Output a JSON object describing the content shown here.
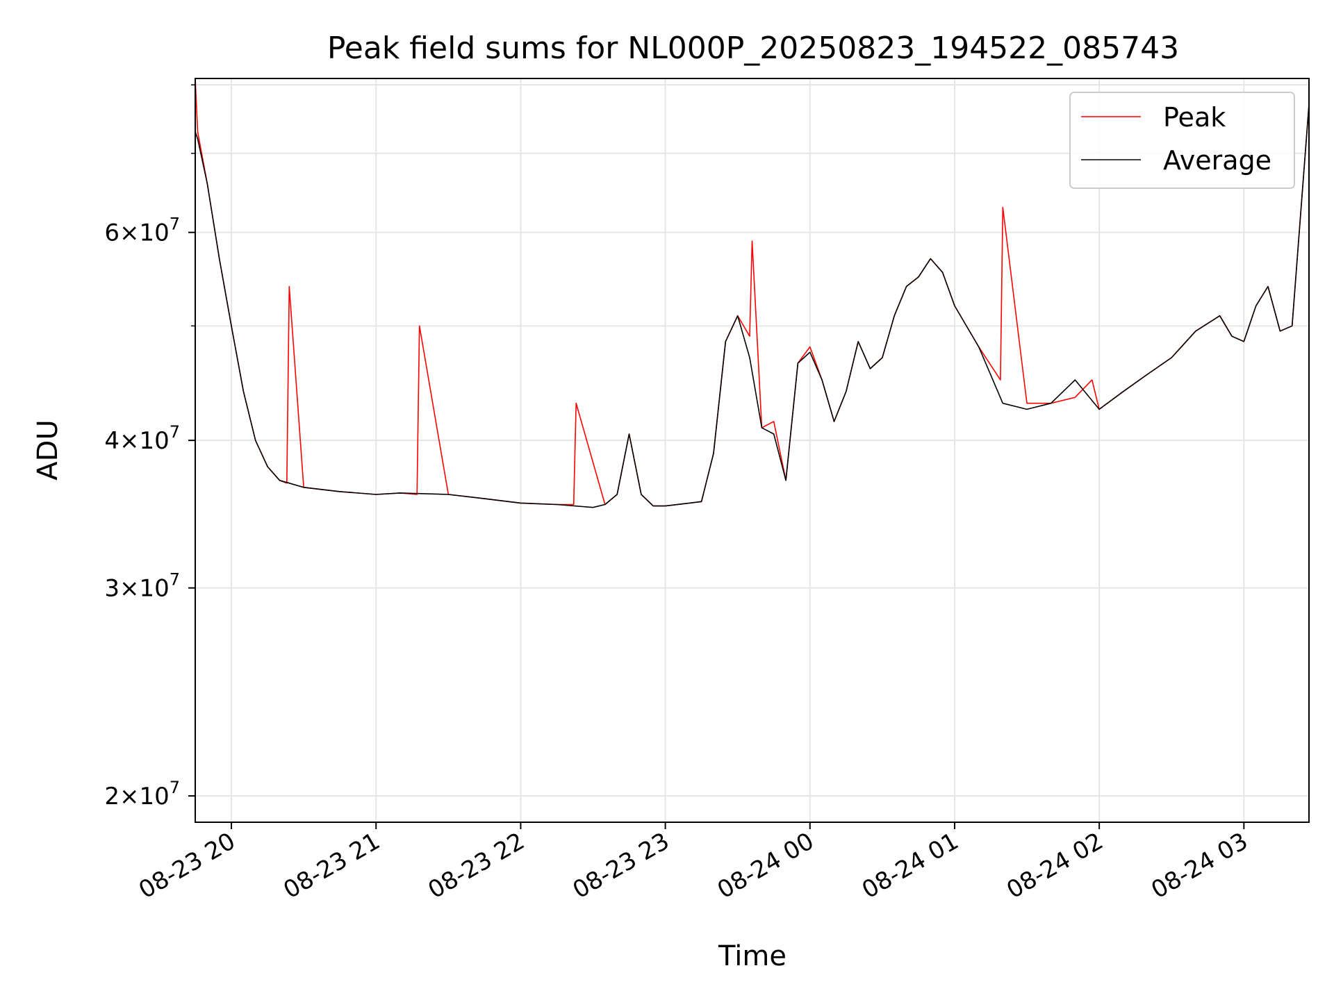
{
  "chart_data": {
    "type": "line",
    "title": "Peak field sums for NL000P_20250823_194522_085743",
    "xlabel": "Time",
    "ylabel": "ADU",
    "x_scale": "time",
    "y_scale": "log",
    "xlim": [
      "2025-08-23 19:45",
      "2025-08-24 03:27"
    ],
    "ylim": [
      19000000,
      81000000
    ],
    "grid": true,
    "legend": "top-right",
    "x_ticks": [
      {
        "t": "2025-08-23 20:00",
        "label": "08-23 20"
      },
      {
        "t": "2025-08-23 21:00",
        "label": "08-23 21"
      },
      {
        "t": "2025-08-23 22:00",
        "label": "08-23 22"
      },
      {
        "t": "2025-08-23 23:00",
        "label": "08-23 23"
      },
      {
        "t": "2025-08-24 00:00",
        "label": "08-24 00"
      },
      {
        "t": "2025-08-24 01:00",
        "label": "08-24 01"
      },
      {
        "t": "2025-08-24 02:00",
        "label": "08-24 02"
      },
      {
        "t": "2025-08-24 03:00",
        "label": "08-24 03"
      }
    ],
    "y_ticks": [
      {
        "value": 20000000,
        "label": "2×10",
        "exp": "7"
      },
      {
        "value": 30000000,
        "label": "3×10",
        "exp": "7"
      },
      {
        "value": 40000000,
        "label": "4×10",
        "exp": "7"
      },
      {
        "value": 60000000,
        "label": "6×10",
        "exp": "7"
      }
    ],
    "y_minor_ticks": [
      50000000,
      70000000,
      80000000
    ],
    "series": [
      {
        "name": "Peak",
        "color": "#ff0000",
        "x": [
          "2025-08-23 19:45",
          "2025-08-23 19:46",
          "2025-08-23 19:50",
          "2025-08-23 19:55",
          "2025-08-23 20:00",
          "2025-08-23 20:05",
          "2025-08-23 20:10",
          "2025-08-23 20:15",
          "2025-08-23 20:20",
          "2025-08-23 20:23",
          "2025-08-23 20:24",
          "2025-08-23 20:30",
          "2025-08-23 20:45",
          "2025-08-23 21:00",
          "2025-08-23 21:10",
          "2025-08-23 21:17",
          "2025-08-23 21:18",
          "2025-08-23 21:30",
          "2025-08-23 21:45",
          "2025-08-23 22:00",
          "2025-08-23 22:15",
          "2025-08-23 22:22",
          "2025-08-23 22:23",
          "2025-08-23 22:35",
          "2025-08-23 22:40",
          "2025-08-23 22:45",
          "2025-08-23 22:50",
          "2025-08-23 22:55",
          "2025-08-23 23:00",
          "2025-08-23 23:10",
          "2025-08-23 23:15",
          "2025-08-23 23:20",
          "2025-08-23 23:25",
          "2025-08-23 23:30",
          "2025-08-23 23:35",
          "2025-08-23 23:36",
          "2025-08-23 23:40",
          "2025-08-23 23:45",
          "2025-08-23 23:50",
          "2025-08-23 23:55",
          "2025-08-24 00:00",
          "2025-08-24 00:05",
          "2025-08-24 00:10",
          "2025-08-24 00:15",
          "2025-08-24 00:20",
          "2025-08-24 00:25",
          "2025-08-24 00:30",
          "2025-08-24 00:35",
          "2025-08-24 00:40",
          "2025-08-24 00:45",
          "2025-08-24 00:50",
          "2025-08-24 00:55",
          "2025-08-24 01:00",
          "2025-08-24 01:10",
          "2025-08-24 01:19",
          "2025-08-24 01:20",
          "2025-08-24 01:30",
          "2025-08-24 01:40",
          "2025-08-24 01:50",
          "2025-08-24 01:57",
          "2025-08-24 02:00",
          "2025-08-24 02:10",
          "2025-08-24 02:20",
          "2025-08-24 02:30",
          "2025-08-24 02:40",
          "2025-08-24 02:50",
          "2025-08-24 02:55",
          "2025-08-24 03:00",
          "2025-08-24 03:05",
          "2025-08-24 03:10",
          "2025-08-24 03:15",
          "2025-08-24 03:20",
          "2025-08-24 03:27"
        ],
        "y": [
          81000000,
          73000000,
          66000000,
          57000000,
          50000000,
          44000000,
          40000000,
          38000000,
          37000000,
          36800000,
          54000000,
          36500000,
          36200000,
          36000000,
          36100000,
          36000000,
          50000000,
          36000000,
          35700000,
          35400000,
          35300000,
          35300000,
          43000000,
          35300000,
          36000000,
          40500000,
          36000000,
          35200000,
          35200000,
          35400000,
          35500000,
          39000000,
          48500000,
          51000000,
          49000000,
          59000000,
          41000000,
          41500000,
          37000000,
          46500000,
          48000000,
          45000000,
          41500000,
          44000000,
          48500000,
          46000000,
          47000000,
          51000000,
          54000000,
          55000000,
          57000000,
          55500000,
          52000000,
          48000000,
          45000000,
          63000000,
          43000000,
          43000000,
          43500000,
          45000000,
          42500000,
          44000000,
          45500000,
          47000000,
          49500000,
          51000000,
          49000000,
          48500000,
          52000000,
          54000000,
          49500000,
          50000000,
          77000000
        ]
      },
      {
        "name": "Average",
        "color": "#000000",
        "x": [
          "2025-08-23 19:45",
          "2025-08-23 19:46",
          "2025-08-23 19:50",
          "2025-08-23 19:55",
          "2025-08-23 20:00",
          "2025-08-23 20:05",
          "2025-08-23 20:10",
          "2025-08-23 20:15",
          "2025-08-23 20:20",
          "2025-08-23 20:30",
          "2025-08-23 20:45",
          "2025-08-23 21:00",
          "2025-08-23 21:10",
          "2025-08-23 21:30",
          "2025-08-23 21:45",
          "2025-08-23 22:00",
          "2025-08-23 22:15",
          "2025-08-23 22:30",
          "2025-08-23 22:35",
          "2025-08-23 22:40",
          "2025-08-23 22:45",
          "2025-08-23 22:50",
          "2025-08-23 22:55",
          "2025-08-23 23:00",
          "2025-08-23 23:10",
          "2025-08-23 23:15",
          "2025-08-23 23:20",
          "2025-08-23 23:25",
          "2025-08-23 23:30",
          "2025-08-23 23:35",
          "2025-08-23 23:40",
          "2025-08-23 23:45",
          "2025-08-23 23:50",
          "2025-08-23 23:55",
          "2025-08-24 00:00",
          "2025-08-24 00:05",
          "2025-08-24 00:10",
          "2025-08-24 00:15",
          "2025-08-24 00:20",
          "2025-08-24 00:25",
          "2025-08-24 00:30",
          "2025-08-24 00:35",
          "2025-08-24 00:40",
          "2025-08-24 00:45",
          "2025-08-24 00:50",
          "2025-08-24 00:55",
          "2025-08-24 01:00",
          "2025-08-24 01:10",
          "2025-08-24 01:20",
          "2025-08-24 01:30",
          "2025-08-24 01:40",
          "2025-08-24 01:50",
          "2025-08-24 02:00",
          "2025-08-24 02:10",
          "2025-08-24 02:20",
          "2025-08-24 02:30",
          "2025-08-24 02:40",
          "2025-08-24 02:50",
          "2025-08-24 02:55",
          "2025-08-24 03:00",
          "2025-08-24 03:05",
          "2025-08-24 03:10",
          "2025-08-24 03:15",
          "2025-08-24 03:20",
          "2025-08-24 03:27"
        ],
        "y": [
          73000000,
          72000000,
          66000000,
          57000000,
          50000000,
          44000000,
          40000000,
          38000000,
          37000000,
          36500000,
          36200000,
          36000000,
          36100000,
          36000000,
          35700000,
          35400000,
          35300000,
          35100000,
          35300000,
          36000000,
          40500000,
          36000000,
          35200000,
          35200000,
          35400000,
          35500000,
          39000000,
          48500000,
          51000000,
          47000000,
          41000000,
          40500000,
          37000000,
          46500000,
          47500000,
          45000000,
          41500000,
          44000000,
          48500000,
          46000000,
          47000000,
          51000000,
          54000000,
          55000000,
          57000000,
          55500000,
          52000000,
          48000000,
          43000000,
          42500000,
          43000000,
          45000000,
          42500000,
          44000000,
          45500000,
          47000000,
          49500000,
          51000000,
          49000000,
          48500000,
          52000000,
          54000000,
          49500000,
          50000000,
          77000000
        ]
      }
    ]
  }
}
